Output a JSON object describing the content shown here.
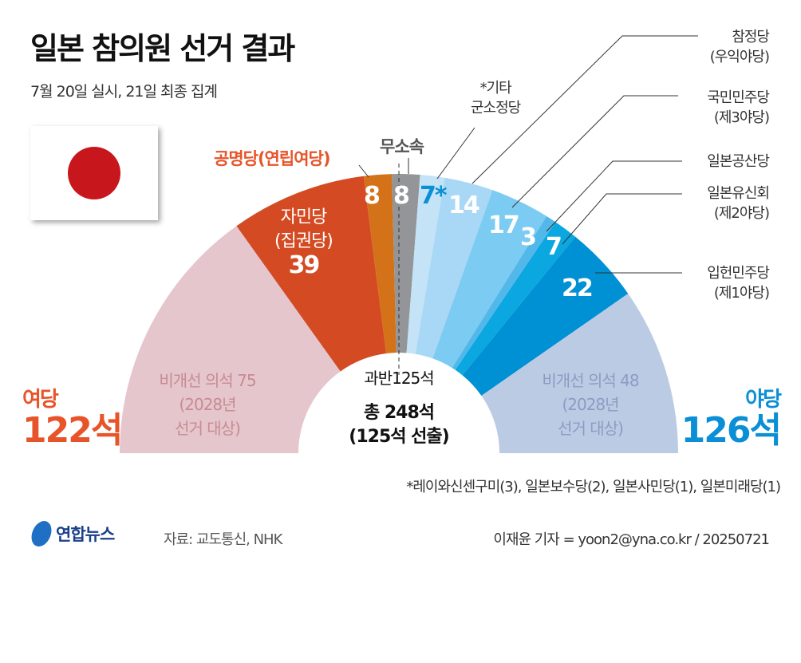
{
  "title": "일본 참의원 선거 결과",
  "subtitle": "7월 20일 실시, 21일 최종 집계",
  "chart_data": {
    "type": "pie",
    "subtype": "semicircle-donut",
    "total_label": "총 248석",
    "total_sub": "(125석 선출)",
    "majority_label": "과반125석",
    "segments": [
      {
        "name": "비개선 의석 75",
        "sub": "(2028년",
        "sub2": "선거 대상)",
        "value": 75,
        "color": "#e4c6cc",
        "label_color": "#c98a92"
      },
      {
        "name": "자민당",
        "sub": "(집권당)",
        "value": 39,
        "color": "#d44a22",
        "value_label": "39"
      },
      {
        "name": "공명당(연립여당)",
        "value": 8,
        "color": "#d4721a",
        "value_label": "8"
      },
      {
        "name": "무소속",
        "value": 8,
        "color": "#939598",
        "value_label": "8"
      },
      {
        "name": "*기타",
        "sub": "군소정당",
        "value": 7,
        "color": "#c5e3f7",
        "value_label": "7*"
      },
      {
        "name": "참정당",
        "sub": "(우익야당)",
        "value": 14,
        "color": "#a8d8f5",
        "value_label": "14"
      },
      {
        "name": "국민민주당",
        "sub": "(제3야당)",
        "value": 17,
        "color": "#7ccbf2",
        "value_label": "17"
      },
      {
        "name": "일본공산당",
        "value": 3,
        "color": "#52b8ea",
        "value_label": "3"
      },
      {
        "name": "일본유신회",
        "sub": "(제2야당)",
        "value": 7,
        "color": "#0aa7e0",
        "value_label": "7"
      },
      {
        "name": "입헌민주당",
        "sub": "(제1야당)",
        "value": 22,
        "color": "#0090d4",
        "value_label": "22"
      },
      {
        "name": "비개선 의석 48",
        "sub": "(2028년",
        "sub2": "선거 대상)",
        "value": 48,
        "color": "#bccbe4",
        "label_color": "#8a9cc4"
      }
    ],
    "ruling": {
      "label": "여당",
      "seats": "122석",
      "color": "#e8542a"
    },
    "opposition": {
      "label": "야당",
      "seats": "126석",
      "color": "#0a8fd6"
    }
  },
  "footnote": "*레이와신센구미(3), 일본보수당(2), 일본사민당(1), 일본미래당(1)",
  "logo": "연합뉴스",
  "source": "자료: 교도통신, NHK",
  "credit": "이재윤 기자 = yoon2@yna.co.kr / 20250721"
}
